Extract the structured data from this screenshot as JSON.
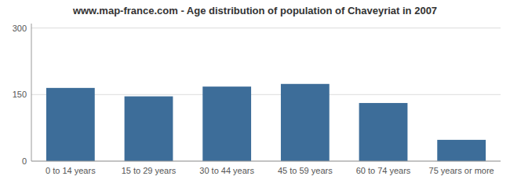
{
  "chart_data": {
    "type": "bar",
    "title": "www.map-france.com - Age distribution of population of Chaveyriat in 2007",
    "categories": [
      "0 to 14 years",
      "15 to 29 years",
      "30 to 44 years",
      "45 to 59 years",
      "60 to 74 years",
      "75 years or more"
    ],
    "values": [
      165,
      146,
      168,
      174,
      131,
      48
    ],
    "color": "#3d6d99",
    "ylim": [
      0,
      310
    ],
    "yticks": [
      0,
      150,
      300
    ],
    "grid": true
  }
}
